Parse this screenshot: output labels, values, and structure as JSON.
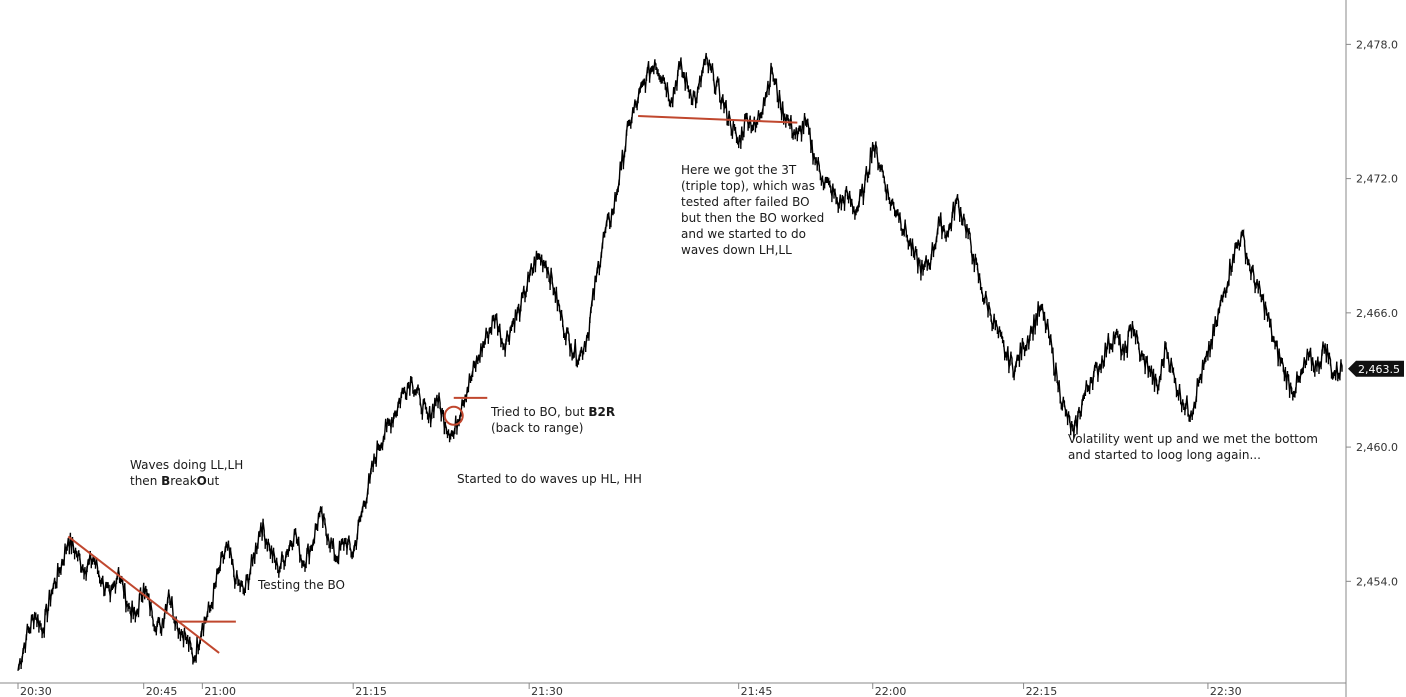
{
  "chart_data": {
    "type": "line",
    "title": "",
    "xlabel": "",
    "ylabel": "",
    "ylim": [
      2449.5,
      2479.0
    ],
    "y_ticks": [
      "2,478.0",
      "2,472.0",
      "2,466.0",
      "2,460.0",
      "2,454.0"
    ],
    "y_tick_values": [
      2478.0,
      2472.0,
      2466.0,
      2460.0,
      2454.0
    ],
    "x_ticks": [
      "20:30",
      "20:45",
      "21:00",
      "21:15",
      "21:30",
      "21:45",
      "22:00",
      "22:15",
      "22:30"
    ],
    "x_tick_minutes": [
      0,
      15,
      22,
      40,
      61,
      86,
      102,
      120,
      142
    ],
    "last_price_label": "2,463.5",
    "last_price": 2463.5,
    "grid": false,
    "series": [
      {
        "name": "",
        "color": "#000000",
        "points": [
          [
            0,
            2450.0
          ],
          [
            1,
            2451.5
          ],
          [
            2,
            2452.5
          ],
          [
            3,
            2451.8
          ],
          [
            4,
            2453.5
          ],
          [
            5,
            2454.5
          ],
          [
            6,
            2455.8
          ],
          [
            7,
            2455.2
          ],
          [
            8,
            2454.5
          ],
          [
            9,
            2455.0
          ],
          [
            10,
            2454.0
          ],
          [
            11,
            2453.2
          ],
          [
            12,
            2454.5
          ],
          [
            13,
            2453.0
          ],
          [
            14,
            2452.3
          ],
          [
            15,
            2453.8
          ],
          [
            16,
            2452.5
          ],
          [
            17,
            2451.8
          ],
          [
            18,
            2453.5
          ],
          [
            19,
            2452.0
          ],
          [
            20,
            2451.5
          ],
          [
            21,
            2450.5
          ],
          [
            22,
            2452.0
          ],
          [
            23,
            2452.8
          ],
          [
            24,
            2454.5
          ],
          [
            25,
            2455.5
          ],
          [
            26,
            2454.0
          ],
          [
            27,
            2453.5
          ],
          [
            28,
            2454.8
          ],
          [
            29,
            2456.5
          ],
          [
            30,
            2455.5
          ],
          [
            31,
            2454.5
          ],
          [
            32,
            2455.2
          ],
          [
            33,
            2456.2
          ],
          [
            34,
            2454.8
          ],
          [
            35,
            2455.5
          ],
          [
            36,
            2457.0
          ],
          [
            37,
            2456.0
          ],
          [
            38,
            2455.0
          ],
          [
            39,
            2455.8
          ],
          [
            40,
            2455.2
          ],
          [
            41,
            2457.0
          ],
          [
            42,
            2458.5
          ],
          [
            43,
            2460.0
          ],
          [
            44,
            2460.8
          ],
          [
            45,
            2461.5
          ],
          [
            46,
            2462.5
          ],
          [
            47,
            2463.0
          ],
          [
            48,
            2462.0
          ],
          [
            49,
            2461.2
          ],
          [
            50,
            2462.2
          ],
          [
            51,
            2461.0
          ],
          [
            52,
            2460.5
          ],
          [
            53,
            2462.0
          ],
          [
            54,
            2463.0
          ],
          [
            55,
            2464.0
          ],
          [
            56,
            2465.0
          ],
          [
            57,
            2465.8
          ],
          [
            58,
            2464.5
          ],
          [
            59,
            2465.5
          ],
          [
            60,
            2466.2
          ],
          [
            61,
            2467.5
          ],
          [
            62,
            2468.5
          ],
          [
            63,
            2468.2
          ],
          [
            64,
            2467.0
          ],
          [
            65,
            2465.5
          ],
          [
            66,
            2464.5
          ],
          [
            67,
            2464.0
          ],
          [
            68,
            2465.0
          ],
          [
            69,
            2467.5
          ],
          [
            70,
            2469.5
          ],
          [
            71,
            2470.5
          ],
          [
            72,
            2472.5
          ],
          [
            73,
            2474.5
          ],
          [
            74,
            2475.5
          ],
          [
            75,
            2476.5
          ],
          [
            76,
            2477.2
          ],
          [
            77,
            2476.5
          ],
          [
            78,
            2475.5
          ],
          [
            79,
            2477.0
          ],
          [
            80,
            2476.0
          ],
          [
            81,
            2475.5
          ],
          [
            82,
            2477.2
          ],
          [
            83,
            2476.5
          ],
          [
            84,
            2475.5
          ],
          [
            85,
            2474.5
          ],
          [
            86,
            2473.5
          ],
          [
            87,
            2474.8
          ],
          [
            88,
            2474.2
          ],
          [
            89,
            2475.5
          ],
          [
            90,
            2476.8
          ],
          [
            91,
            2475.2
          ],
          [
            92,
            2474.5
          ],
          [
            93,
            2473.8
          ],
          [
            94,
            2474.5
          ],
          [
            95,
            2473.0
          ],
          [
            96,
            2472.0
          ],
          [
            97,
            2471.5
          ],
          [
            98,
            2470.8
          ],
          [
            99,
            2471.2
          ],
          [
            100,
            2470.5
          ],
          [
            101,
            2471.5
          ],
          [
            102,
            2473.5
          ],
          [
            103,
            2472.5
          ],
          [
            104,
            2471.0
          ],
          [
            105,
            2470.5
          ],
          [
            106,
            2469.5
          ],
          [
            107,
            2468.5
          ],
          [
            108,
            2467.8
          ],
          [
            109,
            2468.5
          ],
          [
            110,
            2470.0
          ],
          [
            111,
            2469.5
          ],
          [
            112,
            2471.0
          ],
          [
            113,
            2470.0
          ],
          [
            114,
            2468.5
          ],
          [
            115,
            2467.0
          ],
          [
            116,
            2466.0
          ],
          [
            117,
            2465.0
          ],
          [
            118,
            2464.0
          ],
          [
            119,
            2463.5
          ],
          [
            120,
            2464.5
          ],
          [
            121,
            2465.2
          ],
          [
            122,
            2466.2
          ],
          [
            123,
            2465.0
          ],
          [
            124,
            2463.0
          ],
          [
            125,
            2461.5
          ],
          [
            126,
            2460.5
          ],
          [
            127,
            2462.0
          ],
          [
            128,
            2463.0
          ],
          [
            129,
            2463.5
          ],
          [
            130,
            2464.5
          ],
          [
            131,
            2465.0
          ],
          [
            132,
            2464.0
          ],
          [
            133,
            2465.5
          ],
          [
            134,
            2464.0
          ],
          [
            135,
            2463.5
          ],
          [
            136,
            2462.5
          ],
          [
            137,
            2464.5
          ],
          [
            138,
            2463.0
          ],
          [
            139,
            2462.0
          ],
          [
            140,
            2461.5
          ],
          [
            141,
            2463.0
          ],
          [
            142,
            2464.0
          ],
          [
            143,
            2465.5
          ],
          [
            144,
            2467.0
          ],
          [
            145,
            2468.5
          ],
          [
            146,
            2469.5
          ],
          [
            147,
            2468.0
          ],
          [
            148,
            2467.0
          ],
          [
            149,
            2466.0
          ],
          [
            150,
            2464.5
          ],
          [
            151,
            2463.5
          ],
          [
            152,
            2462.5
          ],
          [
            153,
            2463.0
          ],
          [
            154,
            2464.0
          ],
          [
            155,
            2463.5
          ],
          [
            156,
            2464.5
          ],
          [
            157,
            2463.2
          ],
          [
            158,
            2463.5
          ]
        ]
      }
    ],
    "trendlines": [
      {
        "name": "down-trendline",
        "color": "#c0472e",
        "from": [
          6,
          2456.0
        ],
        "to": [
          24,
          2450.8
        ]
      },
      {
        "name": "bo-test-line",
        "color": "#c0472e",
        "from": [
          19,
          2452.2
        ],
        "to": [
          26,
          2452.2
        ]
      },
      {
        "name": "range-top-line",
        "color": "#c0472e",
        "from": [
          52,
          2462.2
        ],
        "to": [
          56,
          2462.2
        ]
      },
      {
        "name": "triple-top-line",
        "color": "#c0472e",
        "from": [
          74,
          2474.8
        ],
        "to": [
          93,
          2474.5
        ]
      }
    ],
    "markers": [
      {
        "name": "b2r-circle",
        "color": "#c0472e",
        "at": [
          52,
          2461.4
        ]
      }
    ],
    "annotations": [
      {
        "name": "annotation-waves-ll-lh",
        "line1": "Waves doing LL,LH",
        "line2_prefix": "then ",
        "line2_b1": "B",
        "line2_mid1": "reak",
        "line2_b2": "O",
        "line2_mid2": "ut"
      },
      {
        "name": "annotation-testing-bo",
        "text": "Testing the BO"
      },
      {
        "name": "annotation-b2r",
        "line1_prefix": "Tried to BO, but ",
        "line1_bold": "B2R",
        "line2": "(back to range)"
      },
      {
        "name": "annotation-waves-up",
        "text": "Started to do waves up HL, HH"
      },
      {
        "name": "annotation-triple-top",
        "text": "Here we got the 3T\n(triple top), which was\ntested after failed BO\nbut then the BO worked\nand we started to do\nwaves down LH,LL"
      },
      {
        "name": "annotation-volatility",
        "text": "Volatility went up and we met the bottom\nand started to loog long again..."
      }
    ]
  }
}
